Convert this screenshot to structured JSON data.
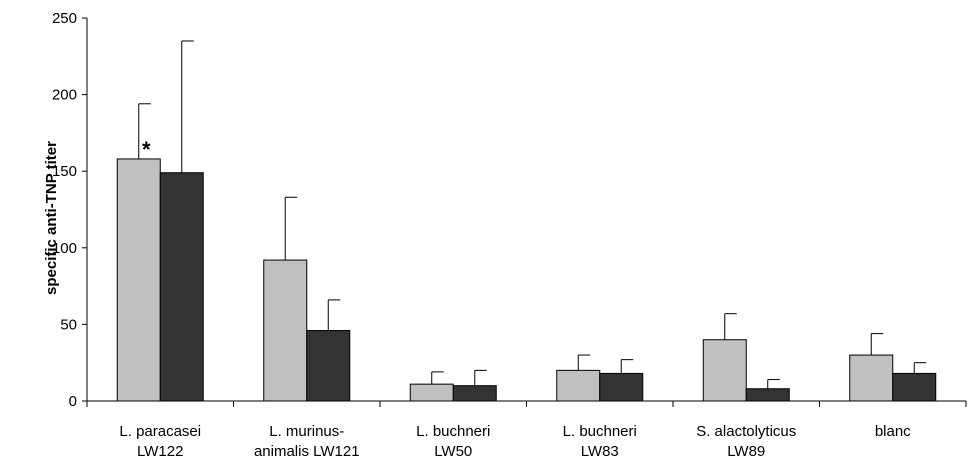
{
  "chart_data": {
    "type": "bar",
    "title": "",
    "xlabel": "",
    "ylabel": "specific anti-TNP titer",
    "ylim": [
      0,
      250
    ],
    "yticks": [
      0,
      50,
      100,
      150,
      200,
      250
    ],
    "grid": false,
    "legend": "none",
    "categories": [
      [
        "L. paracasei",
        "LW122"
      ],
      [
        "L. murinus-",
        "animalis LW121"
      ],
      [
        "L. buchneri",
        "LW50"
      ],
      [
        "L. buchneri",
        "LW83"
      ],
      [
        "S. alactolyticus",
        "LW89"
      ],
      [
        "blanc"
      ]
    ],
    "series": [
      {
        "color": "#c0c0c0",
        "values": [
          158,
          92,
          11,
          20,
          40,
          30
        ],
        "errors": [
          36,
          41,
          8,
          10,
          17,
          14
        ]
      },
      {
        "color": "#333333",
        "values": [
          149,
          46,
          10,
          18,
          8,
          18
        ],
        "errors": [
          86,
          20,
          10,
          9,
          6,
          7
        ]
      }
    ],
    "annotations": [
      {
        "text": "*",
        "category": 0,
        "series": 0,
        "value": 158
      }
    ]
  }
}
